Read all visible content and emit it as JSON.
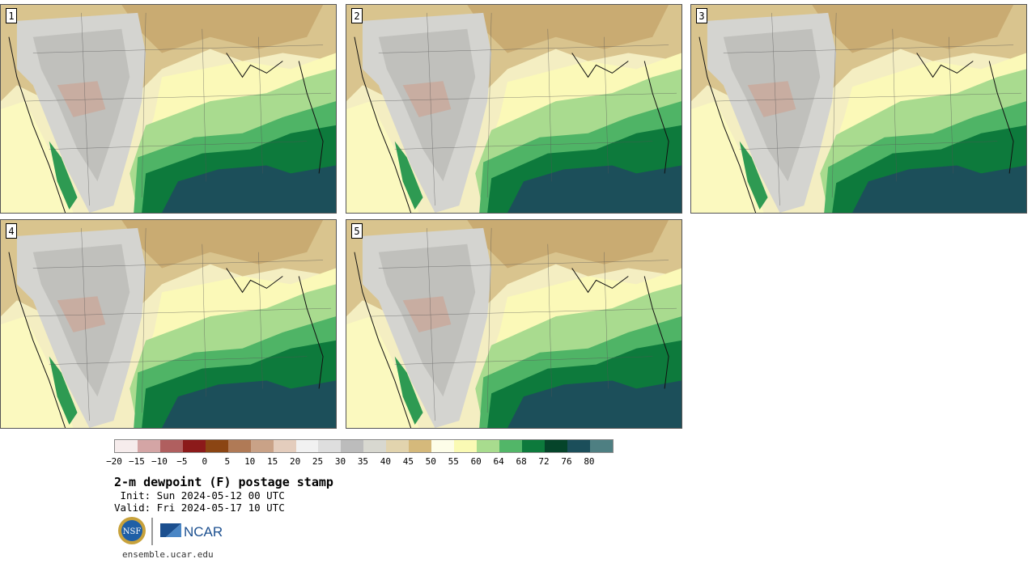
{
  "panels": [
    {
      "label": "1"
    },
    {
      "label": "2"
    },
    {
      "label": "3"
    },
    {
      "label": "4"
    },
    {
      "label": "5"
    }
  ],
  "colorbar": {
    "colors": [
      "#f6ecec",
      "#d4a5a5",
      "#b05f5f",
      "#8c1a1a",
      "#8b4513",
      "#b07a56",
      "#c9a287",
      "#e4cdbd",
      "#f1f1f1",
      "#dedede",
      "#bcbcbc",
      "#d8d8d0",
      "#e2d4ae",
      "#d5b97b",
      "#fdfde8",
      "#fafab4",
      "#a8dc8e",
      "#52b668",
      "#0d7a3c",
      "#05442a",
      "#1b4e5a",
      "#4e7f82"
    ],
    "ticks": [
      "−20",
      "−15",
      "−10",
      "−5",
      "0",
      "5",
      "10",
      "15",
      "20",
      "25",
      "30",
      "35",
      "40",
      "45",
      "50",
      "55",
      "60",
      "64",
      "68",
      "72",
      "76",
      "80"
    ]
  },
  "title": "2-m dewpoint (F) postage stamp",
  "init_line": " Init: Sun 2024-05-12 00 UTC",
  "valid_line": "Valid: Fri 2024-05-17 10 UTC",
  "logos": {
    "nsf": "NSF",
    "ncar": "NCAR"
  },
  "site": "ensemble.ucar.edu"
}
